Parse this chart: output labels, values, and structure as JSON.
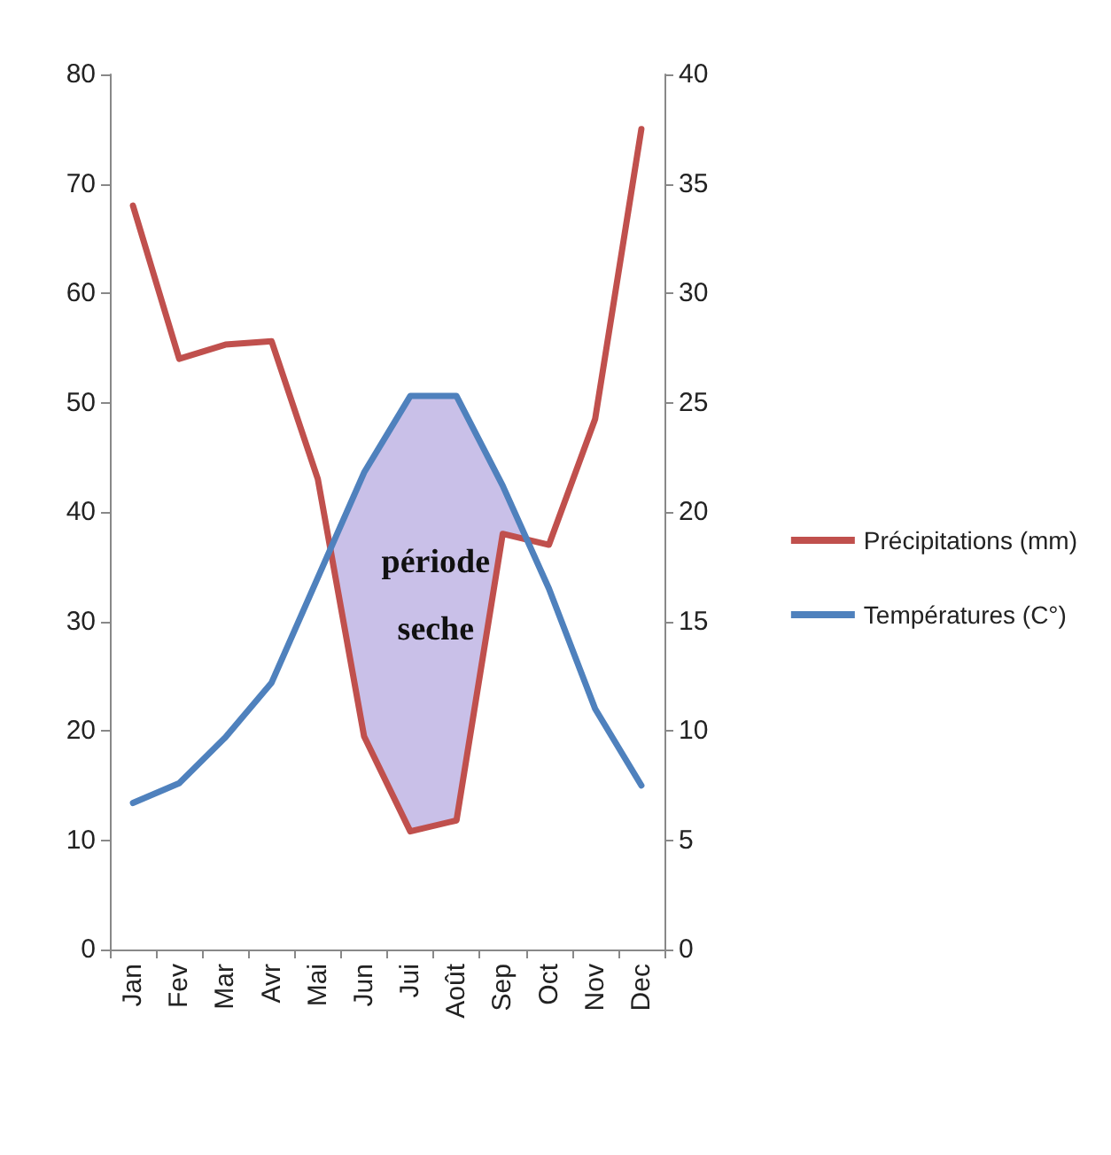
{
  "chart_data": {
    "type": "line",
    "categories": [
      "Jan",
      "Fev",
      "Mar",
      "Avr",
      "Mai",
      "Jun",
      "Jui",
      "Août",
      "Sep",
      "Oct",
      "Nov",
      "Dec"
    ],
    "series": [
      {
        "name": "Précipitations (mm)",
        "color": "#c0504d",
        "values": [
          68,
          54,
          55.3,
          55.6,
          43,
          19.5,
          10.8,
          11.8,
          38,
          37,
          48.5,
          75
        ]
      },
      {
        "name": "Températures (C°)",
        "color": "#4f81bd",
        "axis": "y2",
        "values": [
          6.7,
          7.6,
          9.7,
          12.2,
          17,
          21.8,
          25.3,
          25.3,
          21.2,
          16.5,
          11,
          7.5
        ]
      }
    ],
    "ylim": [
      0,
      80
    ],
    "yticks": [
      0,
      10,
      20,
      30,
      40,
      50,
      60,
      70,
      80
    ],
    "y2lim": [
      0,
      40
    ],
    "y2ticks": [
      0,
      5,
      10,
      15,
      20,
      25,
      30,
      35,
      40
    ],
    "annotations": [
      "période seche"
    ],
    "grid": false,
    "legend": "right",
    "marker": "none",
    "line_style": "solid"
  }
}
